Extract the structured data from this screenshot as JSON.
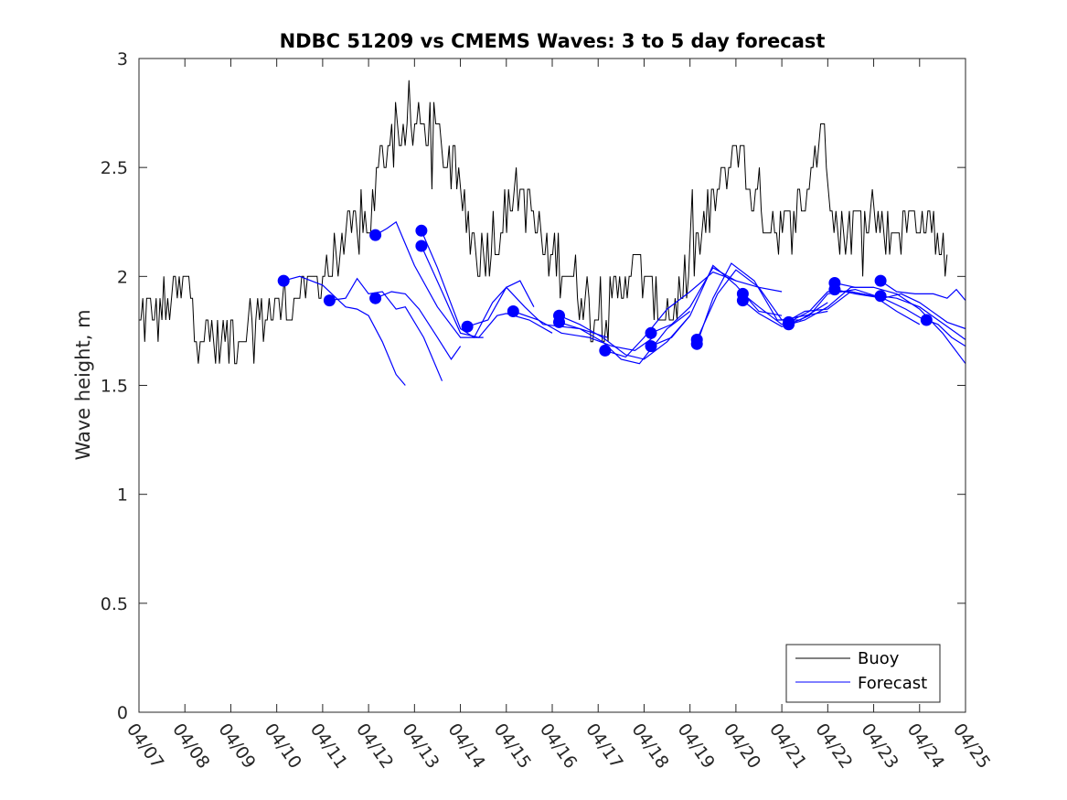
{
  "chart_data": {
    "type": "line",
    "title": "NDBC 51209 vs CMEMS Waves: 3 to 5 day forecast",
    "xlabel": "",
    "ylabel": "Wave height, m",
    "xlim": [
      0,
      18
    ],
    "ylim": [
      0,
      3
    ],
    "x_tick_labels": [
      "04/07",
      "04/08",
      "04/09",
      "04/10",
      "04/11",
      "04/12",
      "04/13",
      "04/14",
      "04/15",
      "04/16",
      "04/17",
      "04/18",
      "04/19",
      "04/20",
      "04/21",
      "04/22",
      "04/23",
      "04/24",
      "04/25"
    ],
    "y_ticks": [
      0,
      0.5,
      1,
      1.5,
      2,
      2.5,
      3
    ],
    "y_tick_labels": [
      "0",
      "0.5",
      "1",
      "1.5",
      "2",
      "2.5",
      "3"
    ],
    "grid": false,
    "legend": {
      "position": "bottom-right",
      "entries": [
        "Buoy",
        "Forecast"
      ]
    },
    "colors": {
      "buoy": "#000000",
      "forecast": "#0000ff"
    },
    "buoy": {
      "name": "Buoy",
      "x_start": 0,
      "x_step": 0.0417,
      "key_x": [
        0,
        0.5,
        1.1,
        1.3,
        1.8,
        2.5,
        3.0,
        3.5,
        4.0,
        4.5,
        5.0,
        5.2,
        5.5,
        5.8,
        6.3,
        6.7,
        7.0,
        7.4,
        7.8,
        8.0,
        8.3,
        8.6,
        8.9,
        9.3,
        9.7,
        10.0,
        10.3,
        10.7,
        11.0,
        11.3,
        11.7,
        12.0,
        12.5,
        12.9,
        13.0,
        13.5,
        13.9,
        14.2,
        14.6,
        14.9,
        15.2,
        15.6,
        15.8,
        16.0,
        16.4,
        16.9,
        17.3,
        17.6
      ],
      "key_y": [
        1.8,
        1.85,
        1.95,
        1.75,
        1.7,
        1.8,
        1.85,
        1.9,
        2.0,
        2.15,
        2.25,
        2.45,
        2.7,
        2.65,
        2.7,
        2.55,
        2.35,
        2.1,
        2.2,
        2.3,
        2.4,
        2.25,
        2.1,
        2.05,
        1.9,
        1.8,
        1.85,
        2.05,
        2.0,
        1.85,
        1.85,
        2.05,
        2.3,
        2.55,
        2.6,
        2.35,
        2.2,
        2.2,
        2.45,
        2.7,
        2.2,
        2.25,
        2.35,
        2.3,
        2.2,
        2.3,
        2.2,
        2.1
      ],
      "noise_amplitude": 0.12,
      "step": 0.1
    },
    "forecast": {
      "name": "Forecast",
      "runs": [
        {
          "start_x": 3.15,
          "points": [
            [
              3.15,
              1.98
            ],
            [
              3.5,
              2.0
            ],
            [
              4.0,
              1.96
            ],
            [
              4.5,
              1.86
            ],
            [
              4.75,
              1.85
            ],
            [
              5.0,
              1.82
            ],
            [
              5.3,
              1.7
            ],
            [
              5.6,
              1.55
            ],
            [
              5.8,
              1.5
            ]
          ]
        },
        {
          "start_x": 4.15,
          "points": [
            [
              4.15,
              1.89
            ],
            [
              4.5,
              1.9
            ],
            [
              4.75,
              1.99
            ],
            [
              5.0,
              1.92
            ],
            [
              5.3,
              1.93
            ],
            [
              5.6,
              1.85
            ],
            [
              5.8,
              1.86
            ],
            [
              6.2,
              1.72
            ],
            [
              6.6,
              1.52
            ]
          ]
        },
        {
          "start_x": 5.15,
          "points": [
            [
              5.15,
              1.9
            ],
            [
              5.5,
              1.93
            ],
            [
              5.8,
              1.92
            ],
            [
              6.1,
              1.85
            ],
            [
              6.5,
              1.72
            ],
            [
              6.8,
              1.62
            ],
            [
              7.0,
              1.68
            ]
          ]
        },
        {
          "start_x": 5.15,
          "points": [
            [
              5.15,
              2.19
            ],
            [
              5.4,
              2.22
            ],
            [
              5.6,
              2.25
            ],
            [
              6.0,
              2.05
            ],
            [
              6.5,
              1.86
            ],
            [
              7.0,
              1.72
            ],
            [
              7.5,
              1.72
            ]
          ]
        },
        {
          "start_x": 6.15,
          "points": [
            [
              6.15,
              2.21
            ],
            [
              6.5,
              2.04
            ],
            [
              7.0,
              1.76
            ],
            [
              7.3,
              1.72
            ],
            [
              7.7,
              1.88
            ],
            [
              8.0,
              1.95
            ],
            [
              8.3,
              1.98
            ],
            [
              8.6,
              1.86
            ]
          ]
        },
        {
          "start_x": 6.15,
          "points": [
            [
              6.15,
              2.14
            ],
            [
              6.6,
              1.93
            ],
            [
              7.0,
              1.74
            ],
            [
              7.4,
              1.72
            ],
            [
              7.8,
              1.82
            ],
            [
              8.0,
              1.83
            ],
            [
              8.5,
              1.8
            ],
            [
              9.0,
              1.74
            ]
          ]
        },
        {
          "start_x": 7.15,
          "points": [
            [
              7.15,
              1.77
            ],
            [
              7.6,
              1.8
            ],
            [
              8.0,
              1.95
            ],
            [
              8.4,
              1.86
            ],
            [
              8.8,
              1.78
            ],
            [
              9.2,
              1.77
            ],
            [
              9.6,
              1.76
            ],
            [
              10.2,
              1.72
            ]
          ]
        },
        {
          "start_x": 8.15,
          "points": [
            [
              8.15,
              1.84
            ],
            [
              8.7,
              1.8
            ],
            [
              9.2,
              1.74
            ],
            [
              9.8,
              1.72
            ],
            [
              10.3,
              1.68
            ],
            [
              10.8,
              1.66
            ],
            [
              11.2,
              1.72
            ]
          ]
        },
        {
          "start_x": 9.15,
          "points": [
            [
              9.15,
              1.82
            ],
            [
              9.6,
              1.78
            ],
            [
              10.1,
              1.72
            ],
            [
              10.6,
              1.64
            ],
            [
              11.0,
              1.62
            ],
            [
              11.5,
              1.7
            ],
            [
              12.0,
              1.82
            ]
          ]
        },
        {
          "start_x": 9.15,
          "points": [
            [
              9.15,
              1.79
            ],
            [
              9.6,
              1.76
            ],
            [
              10.1,
              1.7
            ],
            [
              10.5,
              1.62
            ],
            [
              10.9,
              1.6
            ],
            [
              11.5,
              1.76
            ],
            [
              12.0,
              1.84
            ]
          ]
        },
        {
          "start_x": 10.15,
          "points": [
            [
              10.15,
              1.66
            ],
            [
              10.6,
              1.63
            ],
            [
              11.0,
              1.72
            ],
            [
              11.5,
              1.85
            ],
            [
              12.0,
              1.93
            ],
            [
              12.5,
              2.02
            ],
            [
              13.0,
              1.98
            ]
          ]
        },
        {
          "start_x": 11.15,
          "points": [
            [
              11.15,
              1.74
            ],
            [
              11.6,
              1.78
            ],
            [
              12.0,
              1.86
            ],
            [
              12.5,
              2.04
            ],
            [
              13.0,
              1.98
            ],
            [
              13.5,
              1.95
            ],
            [
              14.0,
              1.93
            ]
          ]
        },
        {
          "start_x": 11.15,
          "points": [
            [
              11.15,
              1.68
            ],
            [
              11.6,
              1.72
            ],
            [
              12.0,
              1.82
            ],
            [
              12.5,
              2.05
            ],
            [
              13.0,
              1.96
            ],
            [
              13.5,
              1.84
            ],
            [
              14.0,
              1.82
            ]
          ]
        },
        {
          "start_x": 12.15,
          "points": [
            [
              12.15,
              1.71
            ],
            [
              12.6,
              1.92
            ],
            [
              13.0,
              2.03
            ],
            [
              13.5,
              1.95
            ],
            [
              14.0,
              1.8
            ],
            [
              14.5,
              1.82
            ],
            [
              15.0,
              1.84
            ]
          ]
        },
        {
          "start_x": 12.15,
          "points": [
            [
              12.15,
              1.69
            ],
            [
              12.5,
              1.9
            ],
            [
              12.9,
              2.06
            ],
            [
              13.4,
              1.98
            ],
            [
              13.9,
              1.8
            ],
            [
              14.4,
              1.8
            ],
            [
              15.0,
              1.88
            ]
          ]
        },
        {
          "start_x": 13.15,
          "points": [
            [
              13.15,
              1.92
            ],
            [
              13.5,
              1.86
            ],
            [
              14.0,
              1.78
            ],
            [
              14.5,
              1.84
            ],
            [
              15.0,
              1.85
            ],
            [
              15.5,
              1.93
            ],
            [
              16.0,
              1.91
            ]
          ]
        },
        {
          "start_x": 13.15,
          "points": [
            [
              13.15,
              1.89
            ],
            [
              13.5,
              1.83
            ],
            [
              14.0,
              1.77
            ],
            [
              14.5,
              1.8
            ],
            [
              15.0,
              1.86
            ],
            [
              15.5,
              1.95
            ],
            [
              16.0,
              1.95
            ]
          ]
        },
        {
          "start_x": 14.15,
          "points": [
            [
              14.15,
              1.79
            ],
            [
              14.6,
              1.84
            ],
            [
              15.0,
              1.93
            ],
            [
              15.5,
              1.93
            ],
            [
              16.0,
              1.91
            ],
            [
              16.5,
              1.84
            ],
            [
              17.0,
              1.78
            ]
          ]
        },
        {
          "start_x": 14.15,
          "points": [
            [
              14.15,
              1.78
            ],
            [
              14.6,
              1.82
            ],
            [
              15.0,
              1.92
            ],
            [
              15.6,
              1.94
            ],
            [
              16.2,
              1.9
            ],
            [
              16.7,
              1.85
            ],
            [
              17.1,
              1.8
            ]
          ]
        },
        {
          "start_x": 15.15,
          "points": [
            [
              15.15,
              1.97
            ],
            [
              15.6,
              1.95
            ],
            [
              16.0,
              1.95
            ],
            [
              16.5,
              1.92
            ],
            [
              17.0,
              1.85
            ],
            [
              17.5,
              1.74
            ],
            [
              18.0,
              1.6
            ]
          ]
        },
        {
          "start_x": 15.15,
          "points": [
            [
              15.15,
              1.94
            ],
            [
              15.6,
              1.92
            ],
            [
              16.2,
              1.9
            ],
            [
              16.6,
              1.92
            ],
            [
              17.0,
              1.88
            ],
            [
              17.6,
              1.79
            ],
            [
              18.0,
              1.76
            ]
          ]
        },
        {
          "start_x": 16.15,
          "points": [
            [
              16.15,
              1.98
            ],
            [
              16.5,
              1.93
            ],
            [
              16.9,
              1.92
            ],
            [
              17.3,
              1.92
            ],
            [
              17.6,
              1.9
            ],
            [
              17.8,
              1.94
            ],
            [
              18.0,
              1.89
            ]
          ]
        },
        {
          "start_x": 16.15,
          "points": [
            [
              16.15,
              1.91
            ],
            [
              16.5,
              1.9
            ],
            [
              17.0,
              1.86
            ],
            [
              17.4,
              1.8
            ],
            [
              17.8,
              1.74
            ],
            [
              18.0,
              1.71
            ]
          ]
        },
        {
          "start_x": 17.15,
          "points": [
            [
              17.15,
              1.8
            ],
            [
              17.4,
              1.78
            ],
            [
              17.7,
              1.72
            ],
            [
              18.0,
              1.68
            ]
          ]
        }
      ]
    }
  }
}
